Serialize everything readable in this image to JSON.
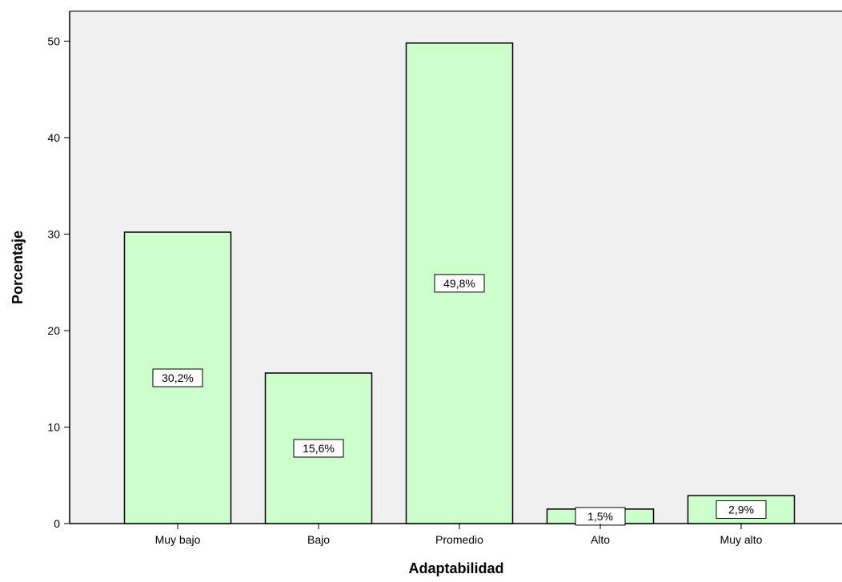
{
  "chart_data": {
    "type": "bar",
    "title": "",
    "xlabel": "Adaptabilidad",
    "ylabel": "Porcentaje",
    "categories": [
      "Muy bajo",
      "Bajo",
      "Promedio",
      "Alto",
      "Muy alto"
    ],
    "values": [
      30.2,
      15.6,
      49.8,
      1.5,
      2.9
    ],
    "data_labels": [
      "30,2%",
      "15,6%",
      "49,8%",
      "1,5%",
      "2,9%"
    ],
    "ylim": [
      0,
      53.1
    ],
    "yticks": [
      0,
      10,
      20,
      30,
      40,
      50
    ],
    "ytick_labels": [
      "0",
      "10",
      "20",
      "30",
      "40",
      "50"
    ],
    "grid": false,
    "legend": "none",
    "colors": {
      "plot_background": "#f0f0f0",
      "bar_fill": "#ccffcc",
      "bar_stroke": "#000000",
      "label_box_fill": "#ffffff"
    }
  }
}
